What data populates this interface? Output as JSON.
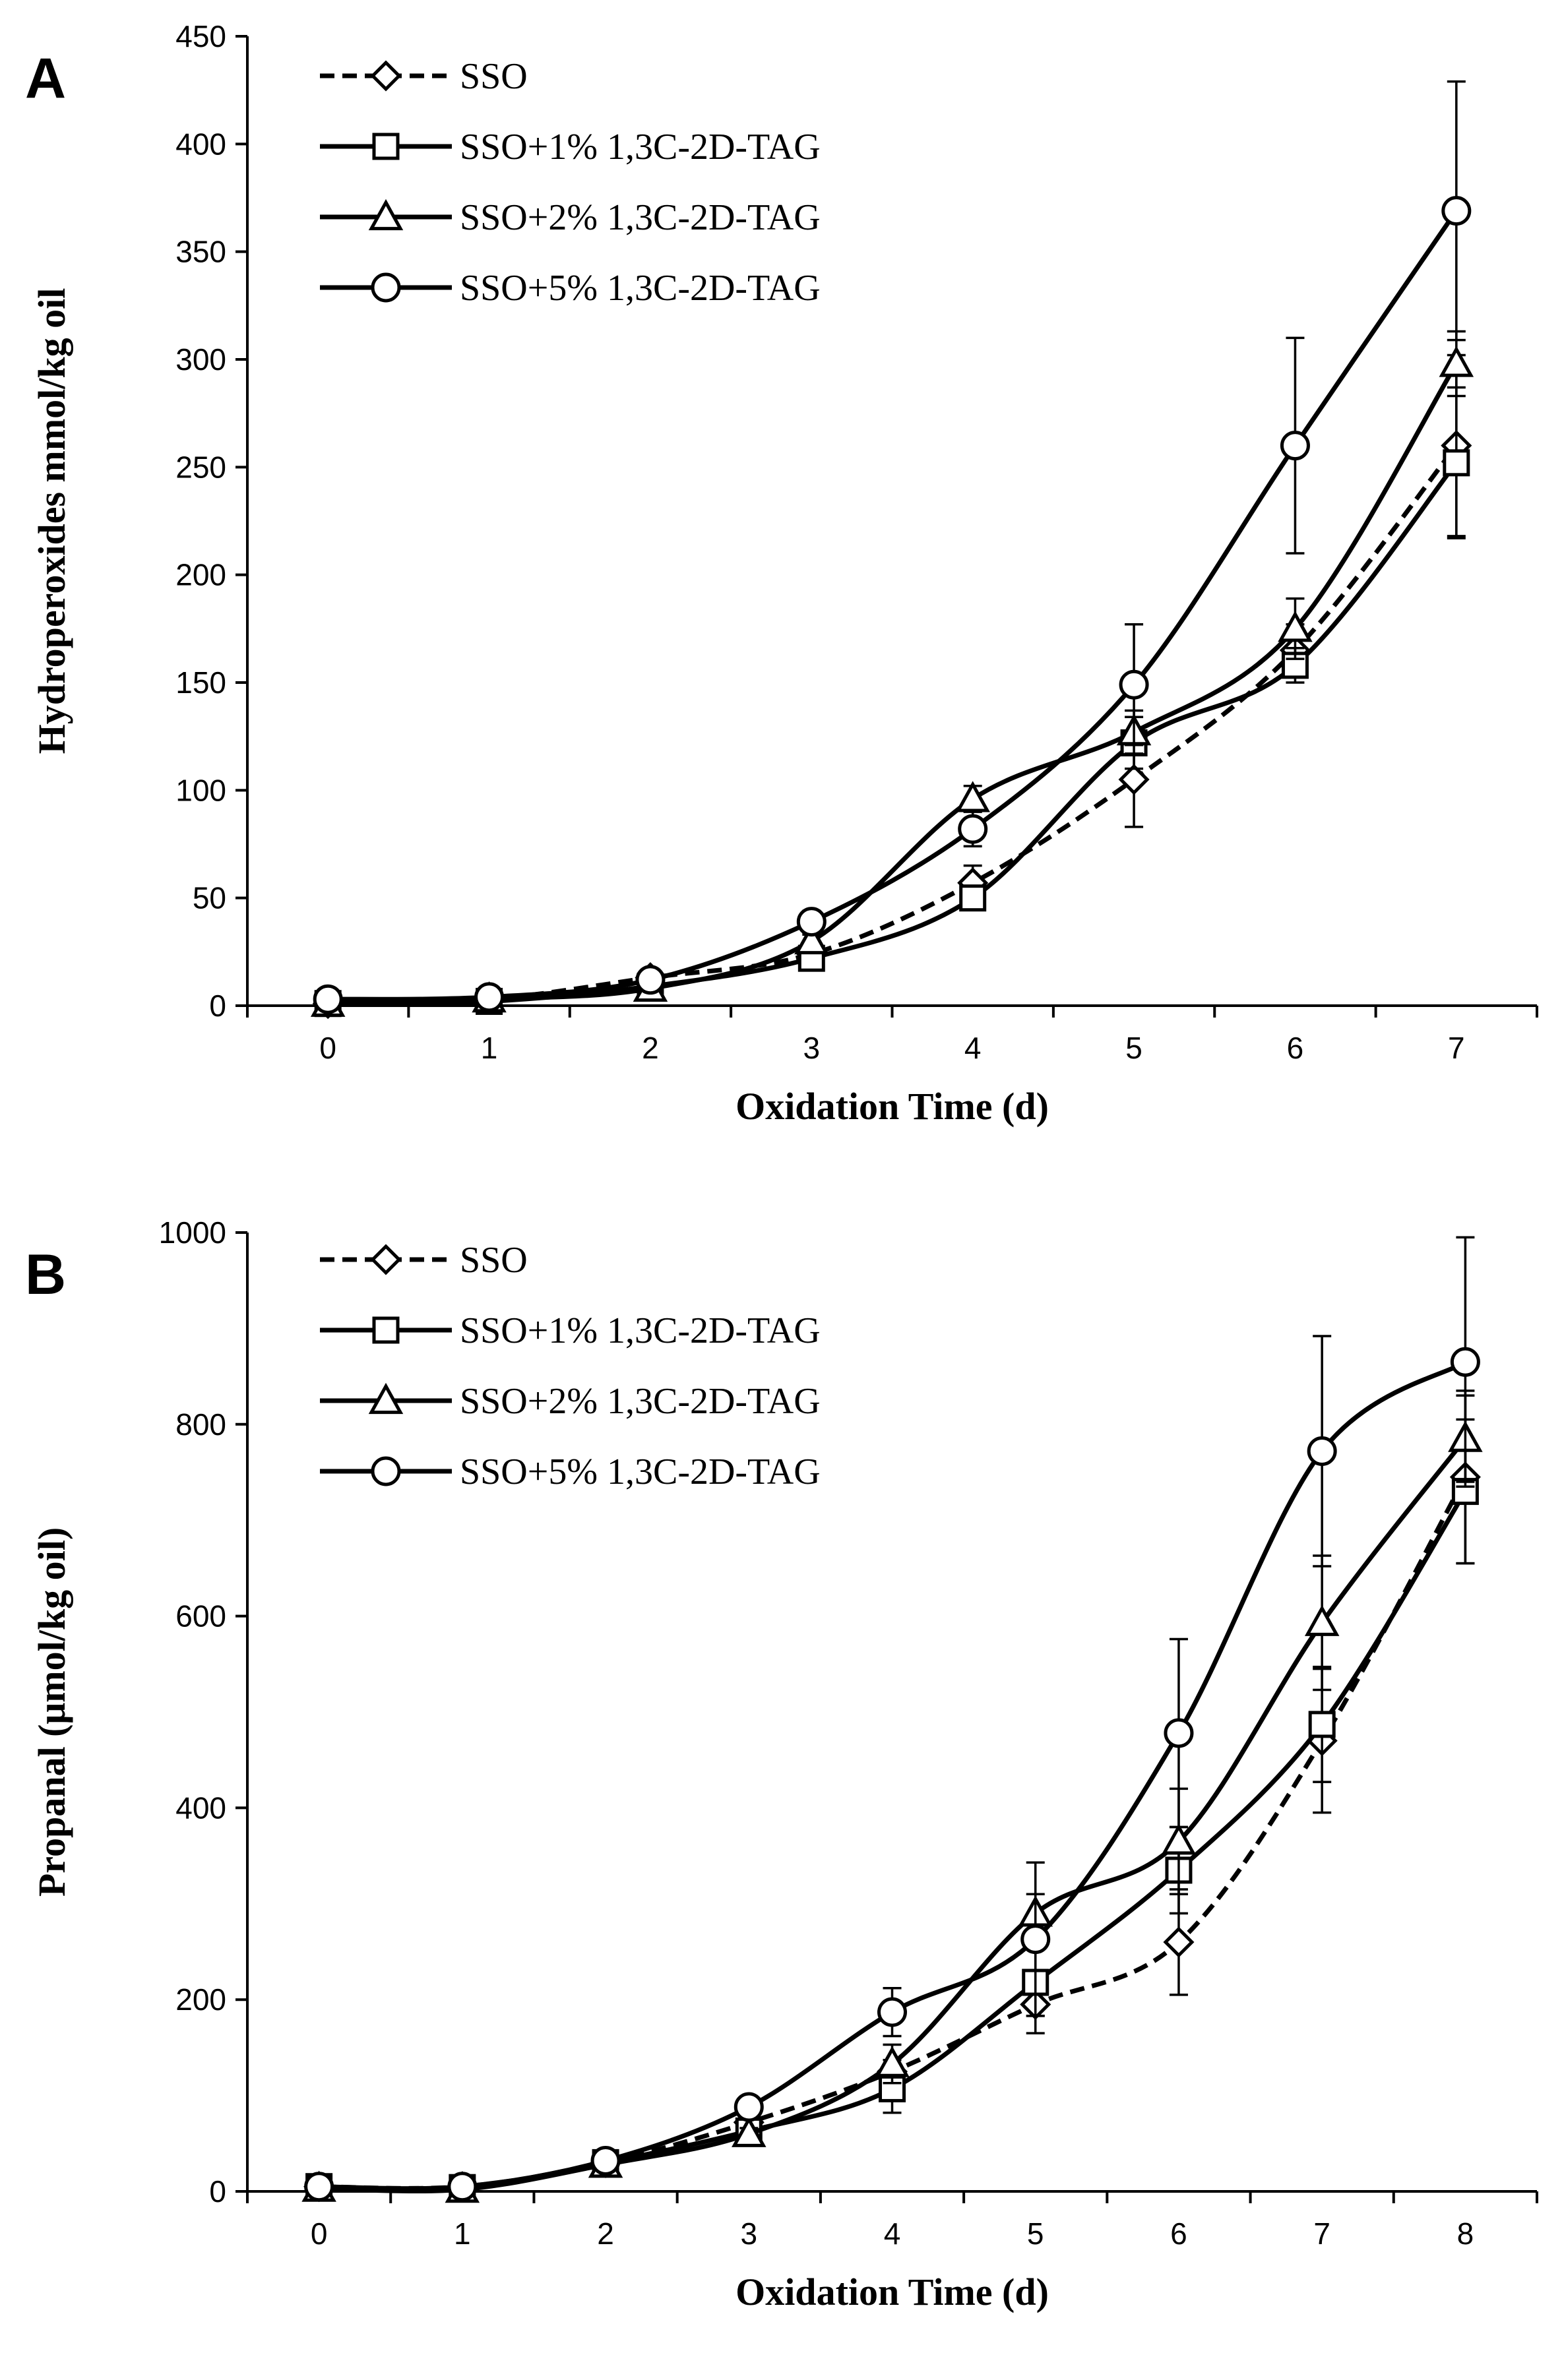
{
  "chart_data": [
    {
      "type": "line",
      "panel_label": "A",
      "title": "",
      "xlabel": "Oxidation Time (d)",
      "ylabel": "Hydroperoxides mmol/kg oil",
      "x": [
        0,
        1,
        2,
        3,
        4,
        5,
        6,
        7
      ],
      "xlim": [
        -0.5,
        7.5
      ],
      "ylim": [
        0,
        450
      ],
      "y_ticks": [
        0,
        50,
        100,
        150,
        200,
        250,
        300,
        350,
        400,
        450
      ],
      "grid": false,
      "legend_position": "top-left",
      "series": [
        {
          "name": "SSO",
          "marker": "diamond",
          "line": "dashed",
          "values": [
            1,
            3,
            13,
            24,
            57,
            105,
            165,
            260
          ],
          "errors": [
            0,
            1,
            2,
            3,
            8,
            22,
            12,
            42
          ]
        },
        {
          "name": "SSO+1% 1,3C-2D-TAG",
          "marker": "square",
          "line": "solid",
          "values": [
            1,
            2,
            9,
            22,
            50,
            122,
            158,
            252
          ],
          "errors": [
            0,
            1,
            1,
            2,
            4,
            12,
            8,
            35
          ]
        },
        {
          "name": "SSO+2% 1,3C-2D-TAG",
          "marker": "triangle",
          "line": "solid",
          "values": [
            1,
            3,
            8,
            30,
            96,
            127,
            175,
            298
          ],
          "errors": [
            0,
            1,
            1,
            3,
            6,
            10,
            14,
            15
          ]
        },
        {
          "name": "SSO+5% 1,3C-2D-TAG",
          "marker": "circle",
          "line": "solid",
          "values": [
            3,
            4,
            12,
            39,
            82,
            149,
            260,
            369
          ],
          "errors": [
            0,
            1,
            2,
            5,
            8,
            28,
            50,
            60
          ]
        }
      ]
    },
    {
      "type": "line",
      "panel_label": "B",
      "title": "",
      "xlabel": "Oxidation Time (d)",
      "ylabel": "Propanal (μmol/kg oil)",
      "x": [
        0,
        1,
        2,
        3,
        4,
        5,
        6,
        7,
        8
      ],
      "xlim": [
        -0.5,
        8.5
      ],
      "ylim": [
        0,
        1000
      ],
      "y_ticks": [
        0,
        200,
        400,
        600,
        800,
        1000
      ],
      "grid": false,
      "legend_position": "top-left",
      "series": [
        {
          "name": "SSO",
          "marker": "diamond",
          "line": "dashed",
          "values": [
            5,
            5,
            30,
            72,
            125,
            195,
            260,
            470,
            745
          ],
          "errors": [
            0,
            2,
            4,
            6,
            12,
            30,
            55,
            75,
            90
          ]
        },
        {
          "name": "SSO+1% 1,3C-2D-TAG",
          "marker": "square",
          "line": "solid",
          "values": [
            5,
            4,
            30,
            63,
            107,
            218,
            335,
            487,
            730
          ],
          "errors": [
            0,
            2,
            4,
            6,
            25,
            35,
            45,
            60,
            75
          ]
        },
        {
          "name": "SSO+2% 1,3C-2D-TAG",
          "marker": "triangle",
          "line": "solid",
          "values": [
            3,
            2,
            28,
            60,
            133,
            290,
            365,
            593,
            785
          ],
          "errors": [
            0,
            2,
            4,
            6,
            20,
            20,
            55,
            70,
            45
          ]
        },
        {
          "name": "SSO+5% 1,3C-2D-TAG",
          "marker": "circle",
          "line": "solid",
          "values": [
            5,
            5,
            32,
            88,
            187,
            263,
            478,
            772,
            865
          ],
          "errors": [
            0,
            2,
            4,
            8,
            25,
            80,
            98,
            120,
            130
          ]
        }
      ]
    }
  ]
}
